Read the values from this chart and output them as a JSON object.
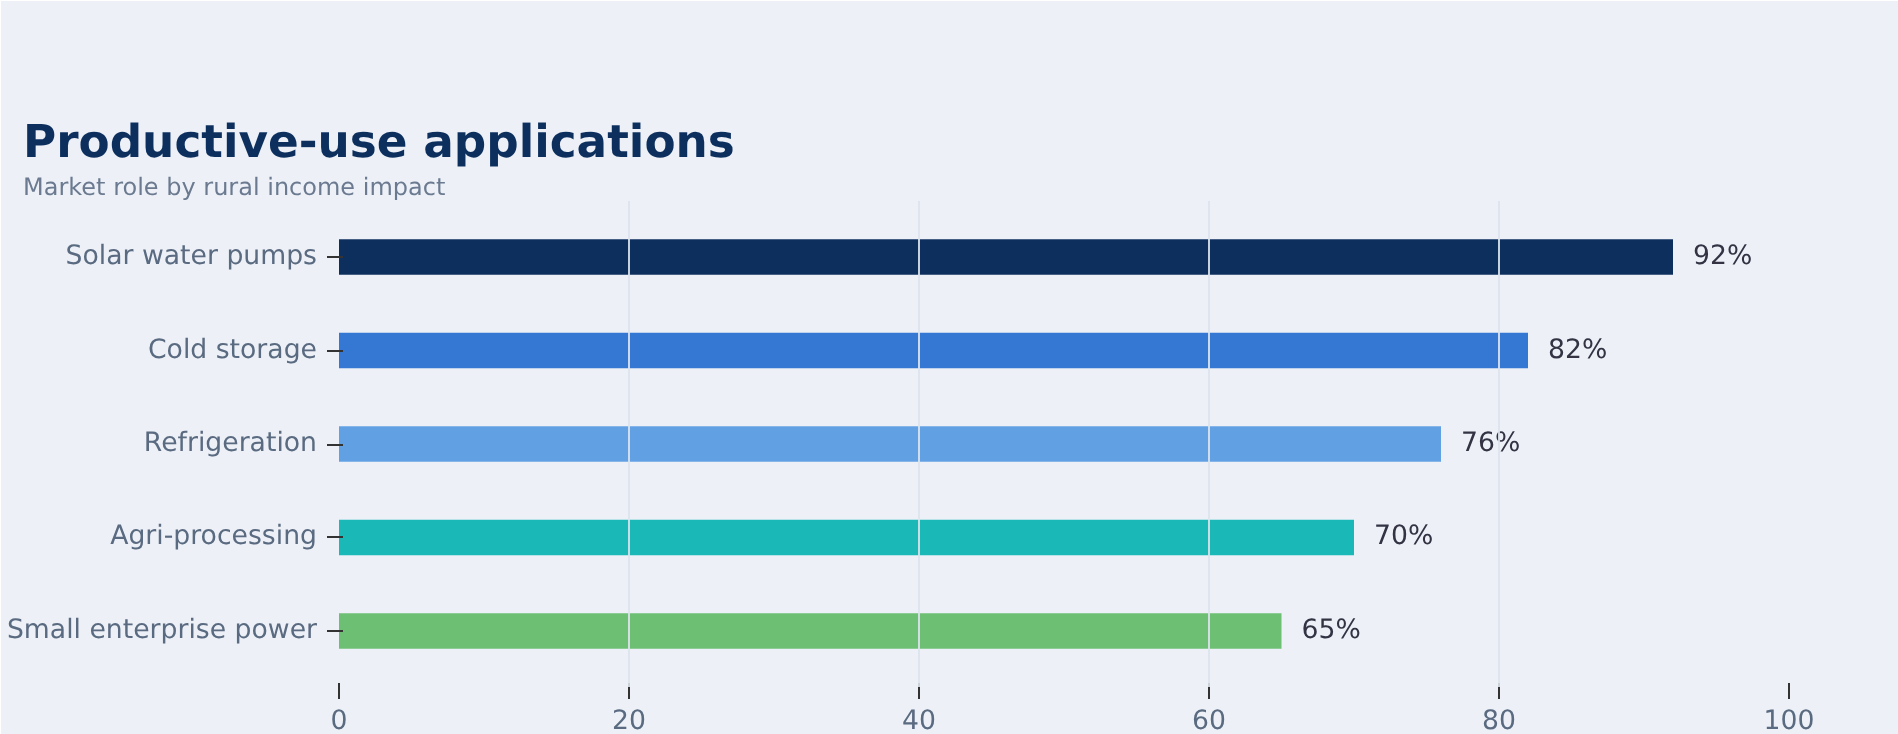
{
  "chart_data": {
    "type": "bar",
    "orientation": "horizontal",
    "title": "Productive-use applications",
    "subtitle": "Market role by rural income impact",
    "categories": [
      "Solar water pumps",
      "Cold storage",
      "Refrigeration",
      "Agri-processing",
      "Small enterprise power"
    ],
    "values": [
      92,
      82,
      76,
      70,
      65
    ],
    "colors": [
      "#0d2f5e",
      "#3478d4",
      "#62a0e4",
      "#1bb8b8",
      "#6dbf73"
    ],
    "value_labels": [
      "92%",
      "82%",
      "76%",
      "70%",
      "65%"
    ],
    "xlim": [
      0,
      100
    ],
    "xticks": [
      0,
      20,
      40,
      60,
      80,
      100
    ],
    "grid": "x"
  }
}
